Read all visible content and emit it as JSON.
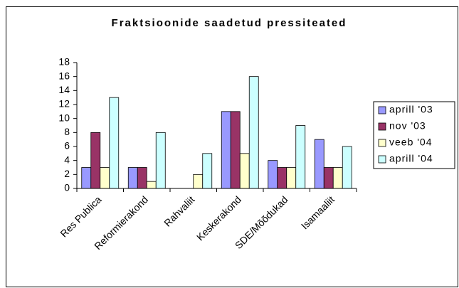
{
  "chart_data": {
    "type": "bar",
    "title": "Fraktsioonide saadetud pressiteated",
    "categories": [
      "Res Publica",
      "Reformierakond",
      "Rahvaliit",
      "Keskerakond",
      "SDE/Mõõdukad",
      "Isamaaliit"
    ],
    "series": [
      {
        "name": "aprill '03",
        "color": "#9999ff",
        "values": [
          3,
          3,
          0,
          11,
          4,
          7
        ]
      },
      {
        "name": "nov '03",
        "color": "#993366",
        "values": [
          8,
          3,
          0,
          11,
          3,
          3
        ]
      },
      {
        "name": "veeb '04",
        "color": "#ffffcc",
        "values": [
          3,
          1,
          2,
          5,
          3,
          3
        ]
      },
      {
        "name": "aprill '04",
        "color": "#ccffff",
        "values": [
          13,
          8,
          5,
          16,
          9,
          6
        ]
      }
    ],
    "ylim": [
      0,
      18
    ],
    "yticks": [
      0,
      2,
      4,
      6,
      8,
      10,
      12,
      14,
      16,
      18
    ],
    "grid": false,
    "legend": "right"
  }
}
